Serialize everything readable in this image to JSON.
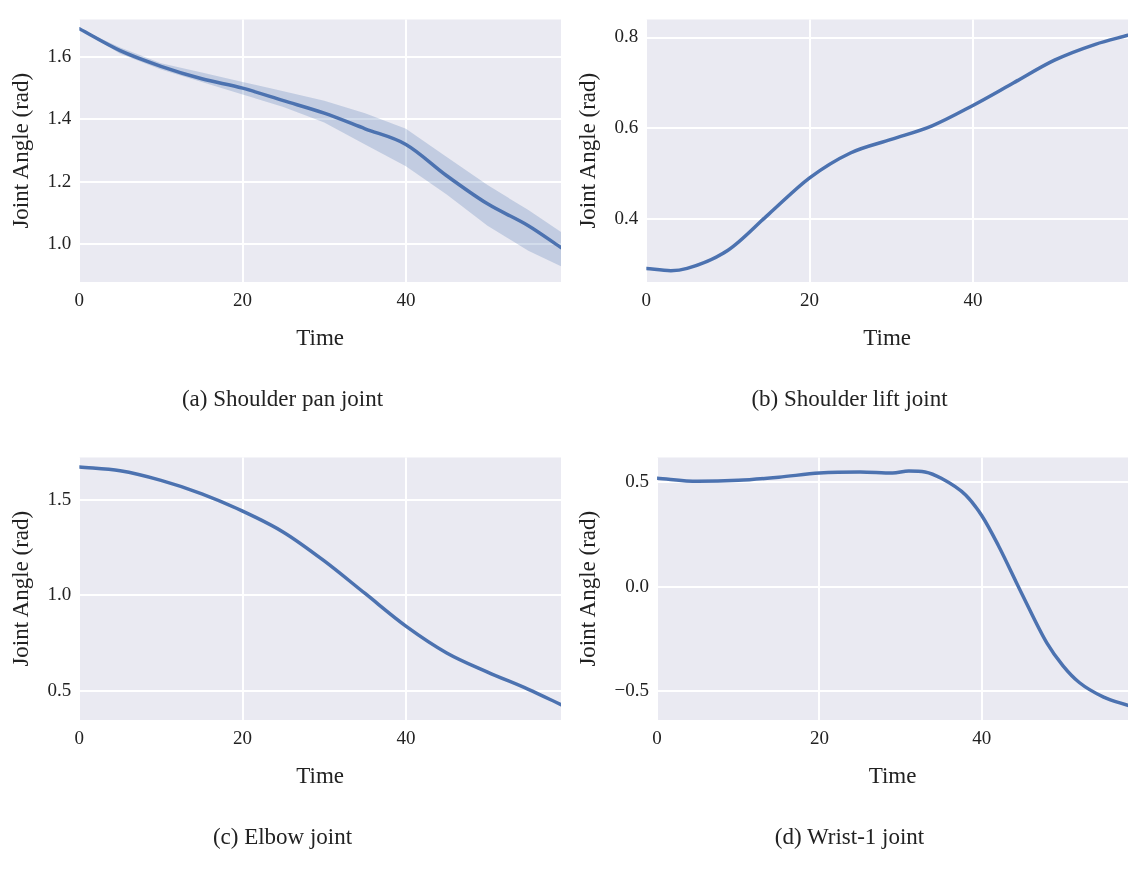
{
  "chart_data": [
    {
      "type": "line",
      "title": "(a) Shoulder pan joint",
      "xlabel": "Time",
      "ylabel": "Joint Angle (rad)",
      "xlim": [
        0,
        59
      ],
      "xticks": [
        0,
        20,
        40
      ],
      "ylim": [
        0.88,
        1.72
      ],
      "yticks": [
        {
          "value": 1.0,
          "label": "1.0"
        },
        {
          "value": 1.2,
          "label": "1.2"
        },
        {
          "value": 1.4,
          "label": "1.4"
        },
        {
          "value": 1.6,
          "label": "1.6"
        }
      ],
      "grid": true,
      "x": [
        0,
        5,
        10,
        15,
        20,
        25,
        30,
        35,
        40,
        45,
        50,
        55,
        59
      ],
      "series": [
        {
          "color": "#4c72b0",
          "values": [
            1.69,
            1.62,
            1.57,
            1.53,
            1.5,
            1.46,
            1.42,
            1.37,
            1.32,
            1.22,
            1.13,
            1.06,
            0.99
          ],
          "lower": [
            1.69,
            1.61,
            1.56,
            1.52,
            1.48,
            1.44,
            1.39,
            1.32,
            1.25,
            1.16,
            1.06,
            0.98,
            0.93
          ],
          "upper": [
            1.69,
            1.63,
            1.58,
            1.55,
            1.52,
            1.49,
            1.46,
            1.42,
            1.37,
            1.28,
            1.19,
            1.11,
            1.04
          ]
        }
      ]
    },
    {
      "type": "line",
      "title": "(b) Shoulder lift joint",
      "xlabel": "Time",
      "ylabel": "Joint Angle (rad)",
      "xlim": [
        0,
        59
      ],
      "xticks": [
        0,
        20,
        40
      ],
      "ylim": [
        0.26,
        0.84
      ],
      "yticks": [
        0.4,
        0.6,
        0.8
      ],
      "grid": true,
      "x": [
        0,
        3,
        5,
        10,
        15,
        20,
        25,
        30,
        35,
        40,
        45,
        50,
        55,
        59
      ],
      "series": [
        {
          "color": "#4c72b0",
          "values": [
            0.29,
            0.285,
            0.29,
            0.33,
            0.41,
            0.49,
            0.545,
            0.575,
            0.605,
            0.65,
            0.7,
            0.75,
            0.785,
            0.805
          ]
        }
      ]
    },
    {
      "type": "line",
      "title": "(c) Elbow joint",
      "xlabel": "Time",
      "ylabel": "Joint Angle (rad)",
      "xlim": [
        0,
        59
      ],
      "xticks": [
        0,
        20,
        40
      ],
      "ylim": [
        0.35,
        1.72
      ],
      "yticks": [
        0.5,
        {
          "value": 1.0,
          "label": "1.0"
        },
        1.5
      ],
      "grid": true,
      "x": [
        0,
        5,
        10,
        15,
        20,
        25,
        30,
        35,
        40,
        45,
        50,
        55,
        59
      ],
      "series": [
        {
          "color": "#4c72b0",
          "values": [
            1.67,
            1.65,
            1.6,
            1.53,
            1.44,
            1.33,
            1.18,
            1.01,
            0.84,
            0.7,
            0.6,
            0.51,
            0.43
          ]
        }
      ]
    },
    {
      "type": "line",
      "title": "(d) Wrist-1 joint",
      "xlabel": "Time",
      "ylabel": "Joint Angle (rad)",
      "xlim": [
        0,
        58
      ],
      "xticks": [
        0,
        20,
        40
      ],
      "ylim": [
        -0.64,
        0.62
      ],
      "yticks": [
        {
          "value": -0.5,
          "label": "−0.5"
        },
        {
          "value": 0,
          "label": "0.0"
        },
        0.5
      ],
      "grid": true,
      "x": [
        0,
        5,
        10,
        15,
        20,
        25,
        29,
        31,
        33,
        35,
        38,
        40,
        42,
        45,
        48,
        50,
        52,
        55,
        58
      ],
      "series": [
        {
          "color": "#4c72b0",
          "values": [
            0.52,
            0.505,
            0.51,
            0.525,
            0.545,
            0.55,
            0.545,
            0.555,
            0.55,
            0.52,
            0.44,
            0.34,
            0.2,
            -0.04,
            -0.27,
            -0.38,
            -0.46,
            -0.53,
            -0.57
          ]
        }
      ]
    }
  ]
}
